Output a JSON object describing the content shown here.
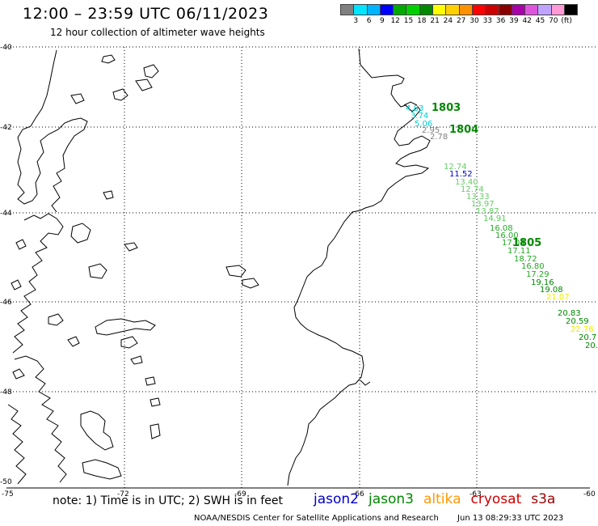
{
  "header": {
    "title": "12:00 – 23:59 UTC 06/11/2023",
    "subtitle": "12 hour collection of altimeter wave heights"
  },
  "legend": {
    "colors": [
      "#808080",
      "#00e5ff",
      "#00b4ff",
      "#0000ff",
      "#00aa00",
      "#00d000",
      "#008800",
      "#ffff00",
      "#ffd000",
      "#ff9000",
      "#ff0000",
      "#cc0000",
      "#880000",
      "#aa00aa",
      "#dd55dd",
      "#bfa3ff",
      "#ff9ad6",
      "#000000"
    ],
    "labels": [
      "3",
      "6",
      "9",
      "12",
      "15",
      "18",
      "21",
      "24",
      "27",
      "30",
      "33",
      "36",
      "39",
      "42",
      "45",
      "70",
      "(ft)"
    ]
  },
  "axes": {
    "lat_labels": [
      "-40",
      "-42",
      "-44",
      "-46",
      "-48",
      "-50"
    ],
    "lon_labels": [
      "-75",
      "-72",
      "-69",
      "-66",
      "-63",
      "-60"
    ]
  },
  "observations": [
    {
      "value": "4.83",
      "color": "#00d0d0"
    },
    {
      "value": "3.74",
      "color": "#00d0d0"
    },
    {
      "value": "5.06",
      "color": "#00d0d0"
    },
    {
      "value": "2.95",
      "color": "#808080"
    },
    {
      "value": "2.78",
      "color": "#808080"
    },
    {
      "value": "12.74",
      "color": "#66cc66"
    },
    {
      "value": "11.52",
      "color": "#0000cc"
    },
    {
      "value": "13.40",
      "color": "#66cc66"
    },
    {
      "value": "12.74",
      "color": "#66cc66"
    },
    {
      "value": "13.33",
      "color": "#66cc66"
    },
    {
      "value": "13.97",
      "color": "#66cc66"
    },
    {
      "value": "13.87",
      "color": "#66cc66"
    },
    {
      "value": "14.91",
      "color": "#55cc55"
    },
    {
      "value": "16.08",
      "color": "#22aa22"
    },
    {
      "value": "16.00",
      "color": "#22aa22"
    },
    {
      "value": "17.04",
      "color": "#22aa22"
    },
    {
      "value": "17.11",
      "color": "#22aa22"
    },
    {
      "value": "18.72",
      "color": "#22aa22"
    },
    {
      "value": "16.80",
      "color": "#22aa22"
    },
    {
      "value": "17.29",
      "color": "#22aa22"
    },
    {
      "value": "19.16",
      "color": "#008800"
    },
    {
      "value": "19.08",
      "color": "#008800"
    },
    {
      "value": "21.07",
      "color": "#eeee00"
    },
    {
      "value": "20.83",
      "color": "#008800"
    },
    {
      "value": "20.59",
      "color": "#008800"
    },
    {
      "value": "22.76",
      "color": "#eeee00"
    },
    {
      "value": "20.7",
      "color": "#008800"
    },
    {
      "value": "20.",
      "color": "#008800"
    }
  ],
  "time_labels": [
    {
      "text": "1803",
      "color": "#008800"
    },
    {
      "text": "1804",
      "color": "#008800"
    },
    {
      "text": "1805",
      "color": "#008800"
    }
  ],
  "footer": {
    "note": "note: 1) Time is in UTC; 2) SWH is in feet",
    "satellites": [
      {
        "name": "jason2",
        "color": "#0000cc"
      },
      {
        "name": "jason3",
        "color": "#008800"
      },
      {
        "name": "altika",
        "color": "#ff9900"
      },
      {
        "name": "cryosat",
        "color": "#cc0000"
      },
      {
        "name": "s3a",
        "color": "#990000"
      }
    ],
    "credit": "NOAA/NESDIS Center for Satellite Applications and Research",
    "timestamp": "Jun 13 08:29:33 UTC 2023"
  }
}
